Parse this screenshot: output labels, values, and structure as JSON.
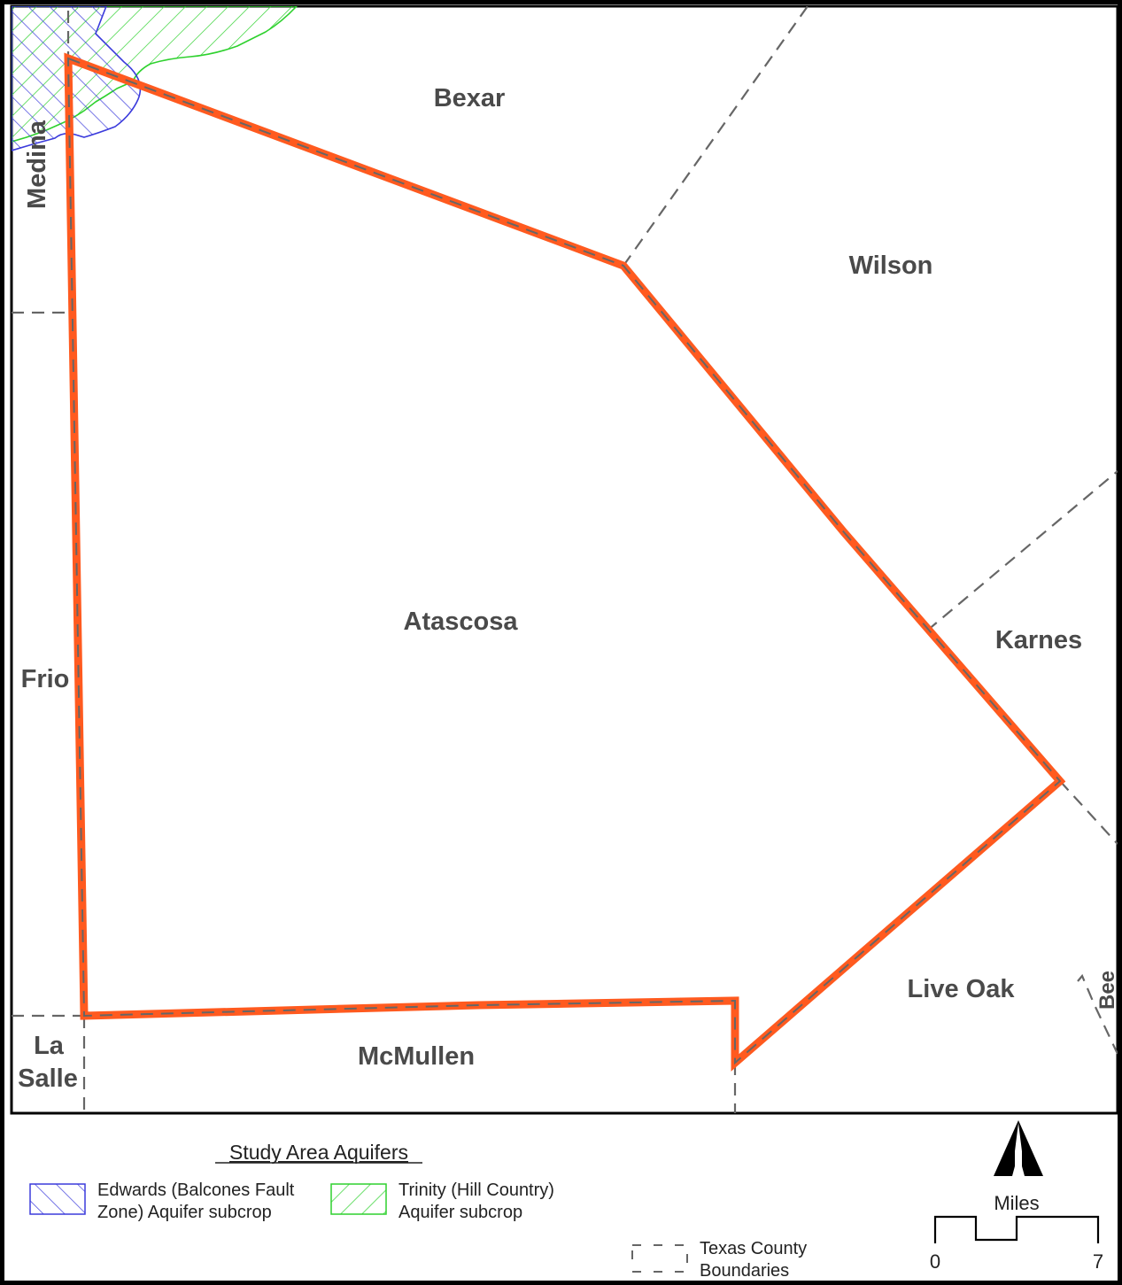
{
  "map": {
    "counties": {
      "bexar": "Bexar",
      "medina": "Medina",
      "wilson": "Wilson",
      "atascosa": "Atascosa",
      "karnes": "Karnes",
      "frio": "Frio",
      "live_oak": "Live Oak",
      "la_salle_line1": "La",
      "la_salle_line2": "Salle",
      "mcmullen": "McMullen",
      "bee": "Bee"
    }
  },
  "legend": {
    "title": "Study Area Aquifers",
    "edwards_line1": "Edwards (Balcones Fault",
    "edwards_line2": "Zone) Aquifer subcrop",
    "trinity_line1": "Trinity (Hill Country)",
    "trinity_line2": "Aquifer subcrop",
    "county_line1": "Texas County",
    "county_line2": "Boundaries"
  },
  "scale_bar": {
    "unit": "Miles",
    "start": "0",
    "end": "7"
  },
  "colors": {
    "study_area_outline": "#ff5a1f",
    "edwards_aquifer": "#3b3bdc",
    "trinity_aquifer": "#2ed12e",
    "county_boundary": "#666666",
    "label_text": "#4a4a4a"
  }
}
